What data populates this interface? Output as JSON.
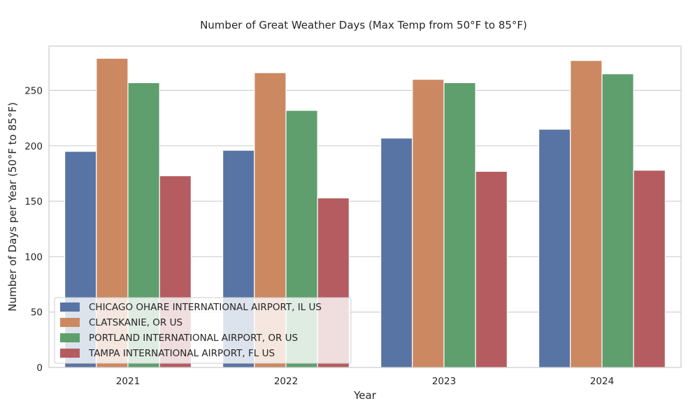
{
  "chart_data": {
    "type": "bar",
    "title": "Number of Great Weather Days (Max Temp from 50°F to 85°F)",
    "xlabel": "Year",
    "ylabel": "Number of Days per Year (50°F to 85°F)",
    "categories": [
      "2021",
      "2022",
      "2023",
      "2024"
    ],
    "ylim": [
      0,
      290
    ],
    "yticks": [
      0,
      50,
      100,
      150,
      200,
      250
    ],
    "grid": "horizontal",
    "legend_placement": "lower-left",
    "series": [
      {
        "name": "CHICAGO OHARE INTERNATIONAL AIRPORT, IL US",
        "color": "#5874a4",
        "values": [
          195,
          196,
          207,
          215
        ]
      },
      {
        "name": "CLATSKANIE, OR US",
        "color": "#cc8861",
        "values": [
          279,
          266,
          260,
          277
        ]
      },
      {
        "name": "PORTLAND INTERNATIONAL AIRPORT, OR US",
        "color": "#5e9f6d",
        "values": [
          257,
          232,
          257,
          265
        ]
      },
      {
        "name": "TAMPA INTERNATIONAL AIRPORT, FL US",
        "color": "#b55c60",
        "values": [
          173,
          153,
          177,
          178
        ]
      }
    ]
  }
}
